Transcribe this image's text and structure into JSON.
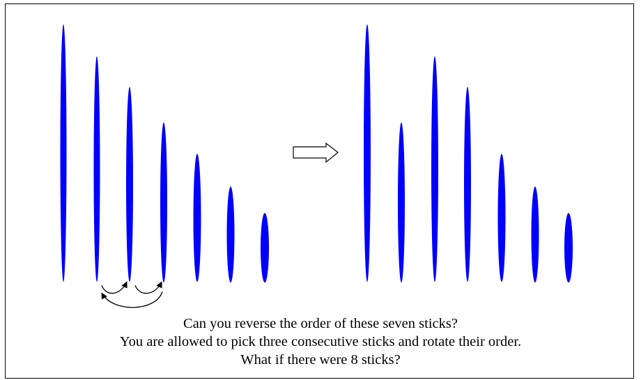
{
  "caption": {
    "line1": "Can you reverse the order of these seven sticks?",
    "line2": "You are allowed to pick three consecutive sticks and rotate their order.",
    "line3": "What if there were 8 sticks?"
  },
  "colors": {
    "stick": "#0000ff",
    "outline": "#000000",
    "background": "#ffffff"
  },
  "sticks": {
    "count": 7,
    "initial_order": [
      7,
      6,
      5,
      4,
      3,
      2,
      1
    ],
    "after_rotation_order": [
      7,
      4,
      6,
      5,
      3,
      2,
      1
    ]
  },
  "icons": {
    "transition": "hollow-right-arrow-icon",
    "rotation": "curved-swap-arrows-icon"
  }
}
